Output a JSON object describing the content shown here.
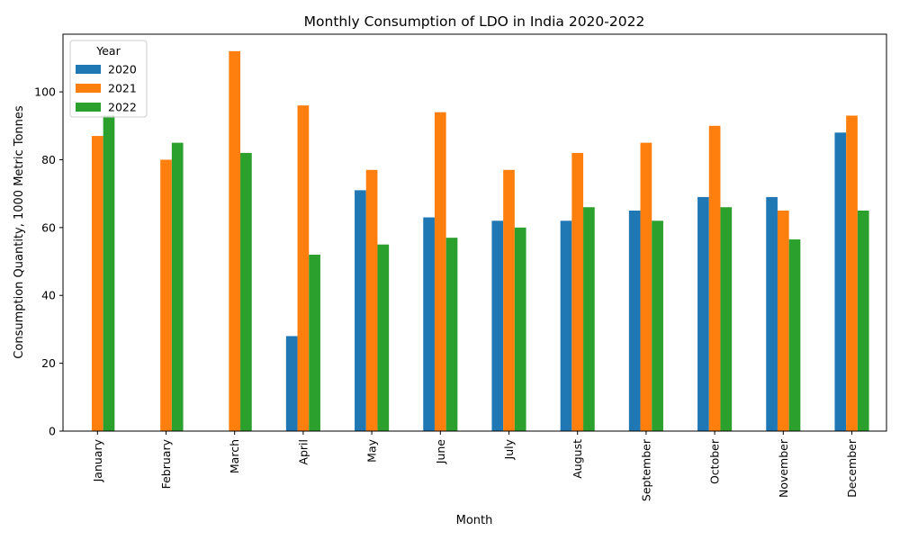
{
  "chart_data": {
    "type": "bar",
    "title": "Monthly Consumption of LDO in India 2020-2022",
    "xlabel": "Month",
    "ylabel": "Consumption Quantity, 1000 Metric Tonnes",
    "ylim": [
      0,
      117
    ],
    "yticks": [
      0,
      20,
      40,
      60,
      80,
      100
    ],
    "grid": false,
    "legend": {
      "title": "Year",
      "placement": "top-left"
    },
    "categories": [
      "January",
      "February",
      "March",
      "April",
      "May",
      "June",
      "July",
      "August",
      "September",
      "October",
      "November",
      "December"
    ],
    "series": [
      {
        "name": "2020",
        "color": "#1f77b4",
        "values": [
          0,
          0,
          0,
          28,
          71,
          63,
          62,
          62,
          65,
          69,
          69,
          88
        ]
      },
      {
        "name": "2021",
        "color": "#ff7f0e",
        "values": [
          87,
          80,
          112,
          96,
          77,
          94,
          77,
          82,
          85,
          90,
          65,
          93
        ]
      },
      {
        "name": "2022",
        "color": "#2ca02c",
        "values": [
          93,
          85,
          82,
          52,
          55,
          57,
          60,
          66,
          62,
          66,
          56.5,
          65
        ]
      }
    ]
  }
}
